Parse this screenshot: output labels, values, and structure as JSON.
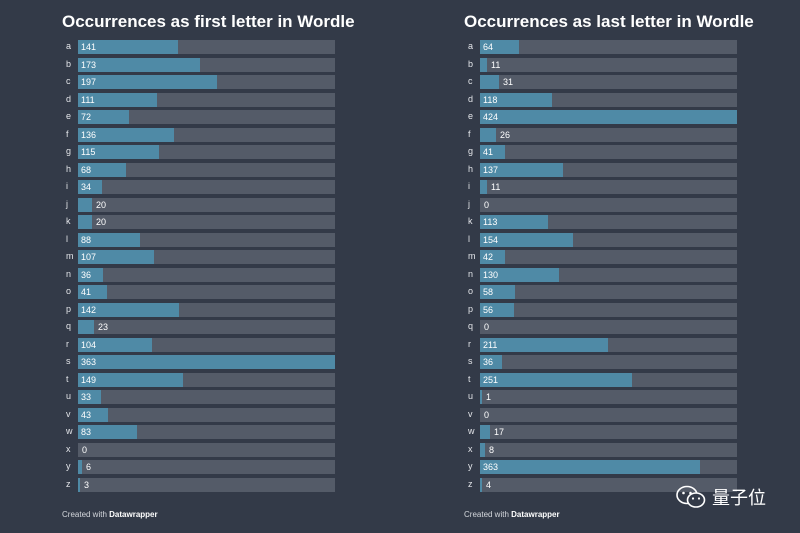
{
  "chart_data": [
    {
      "type": "bar",
      "title": "Occurrences as first letter in Wordle",
      "credit_prefix": "Created with",
      "credit_brand": "Datawrapper",
      "categories": [
        "a",
        "b",
        "c",
        "d",
        "e",
        "f",
        "g",
        "h",
        "i",
        "j",
        "k",
        "l",
        "m",
        "n",
        "o",
        "p",
        "q",
        "r",
        "s",
        "t",
        "u",
        "v",
        "w",
        "x",
        "y",
        "z"
      ],
      "values": [
        141,
        173,
        197,
        111,
        72,
        136,
        115,
        68,
        34,
        20,
        20,
        88,
        107,
        36,
        41,
        142,
        23,
        104,
        363,
        149,
        33,
        43,
        83,
        0,
        6,
        3
      ],
      "xlim": [
        0,
        363
      ]
    },
    {
      "type": "bar",
      "title": "Occurrences as last letter in Wordle",
      "credit_prefix": "Created with",
      "credit_brand": "Datawrapper",
      "categories": [
        "a",
        "b",
        "c",
        "d",
        "e",
        "f",
        "g",
        "h",
        "i",
        "j",
        "k",
        "l",
        "m",
        "n",
        "o",
        "p",
        "q",
        "r",
        "s",
        "t",
        "u",
        "v",
        "w",
        "x",
        "y",
        "z"
      ],
      "values": [
        64,
        11,
        31,
        118,
        424,
        26,
        41,
        137,
        11,
        0,
        113,
        154,
        42,
        130,
        58,
        56,
        0,
        211,
        36,
        251,
        1,
        0,
        17,
        8,
        363,
        4
      ],
      "xlim": [
        0,
        424
      ]
    }
  ],
  "watermark": {
    "text": "量子位",
    "icon": "wechat-icon"
  },
  "colors": {
    "background": "#333a48",
    "track": "#545b68",
    "bar": "#4f8aa6"
  }
}
